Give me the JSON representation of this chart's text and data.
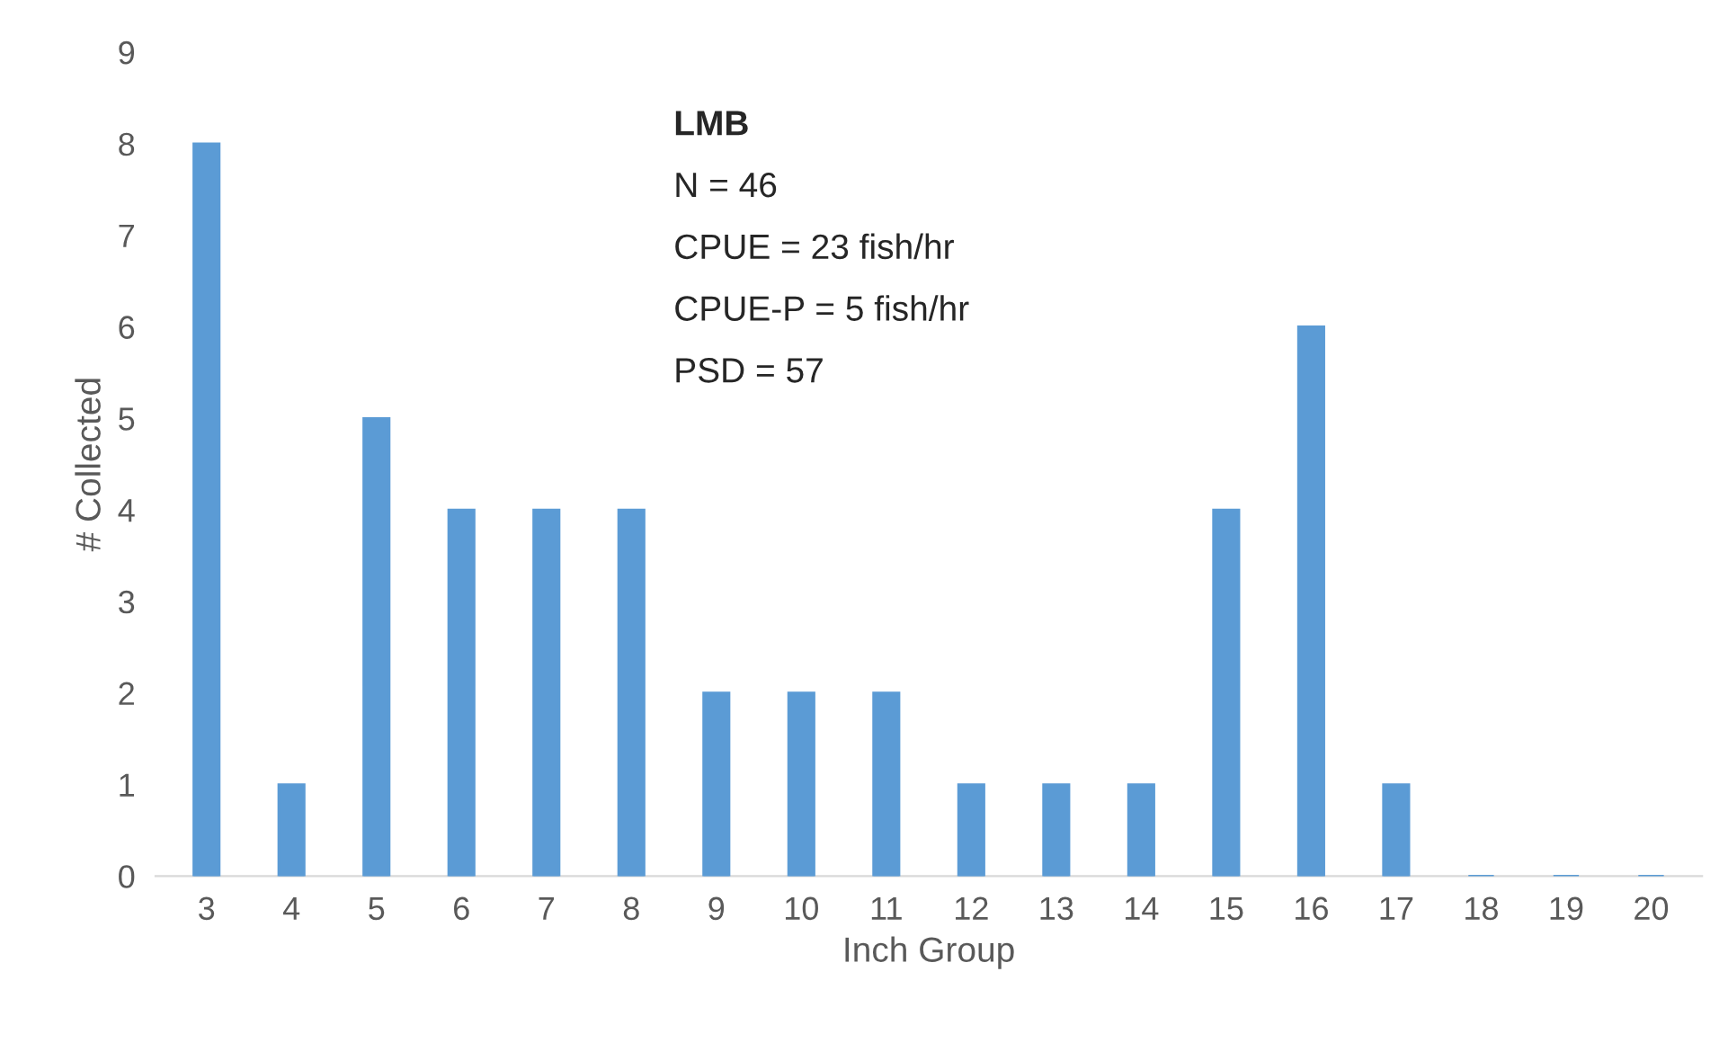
{
  "chart_data": {
    "type": "bar",
    "xlabel": "Inch Group",
    "ylabel": "# Collected",
    "categories": [
      "3",
      "4",
      "5",
      "6",
      "7",
      "8",
      "9",
      "10",
      "11",
      "12",
      "13",
      "14",
      "15",
      "16",
      "17",
      "18",
      "19",
      "20"
    ],
    "values": [
      8,
      1,
      5,
      4,
      4,
      4,
      2,
      2,
      2,
      1,
      1,
      1,
      4,
      6,
      1,
      0,
      0,
      0
    ],
    "color": "#5b9bd5",
    "ylim": [
      0,
      9
    ],
    "yticks": [
      0,
      1,
      2,
      3,
      4,
      5,
      6,
      7,
      8,
      9
    ],
    "grid": false,
    "legend": false,
    "annotations": [
      "LMB",
      "N = 46",
      "CPUE = 23 fish/hr",
      "CPUE-P = 5 fish/hr",
      "PSD = 57"
    ]
  }
}
